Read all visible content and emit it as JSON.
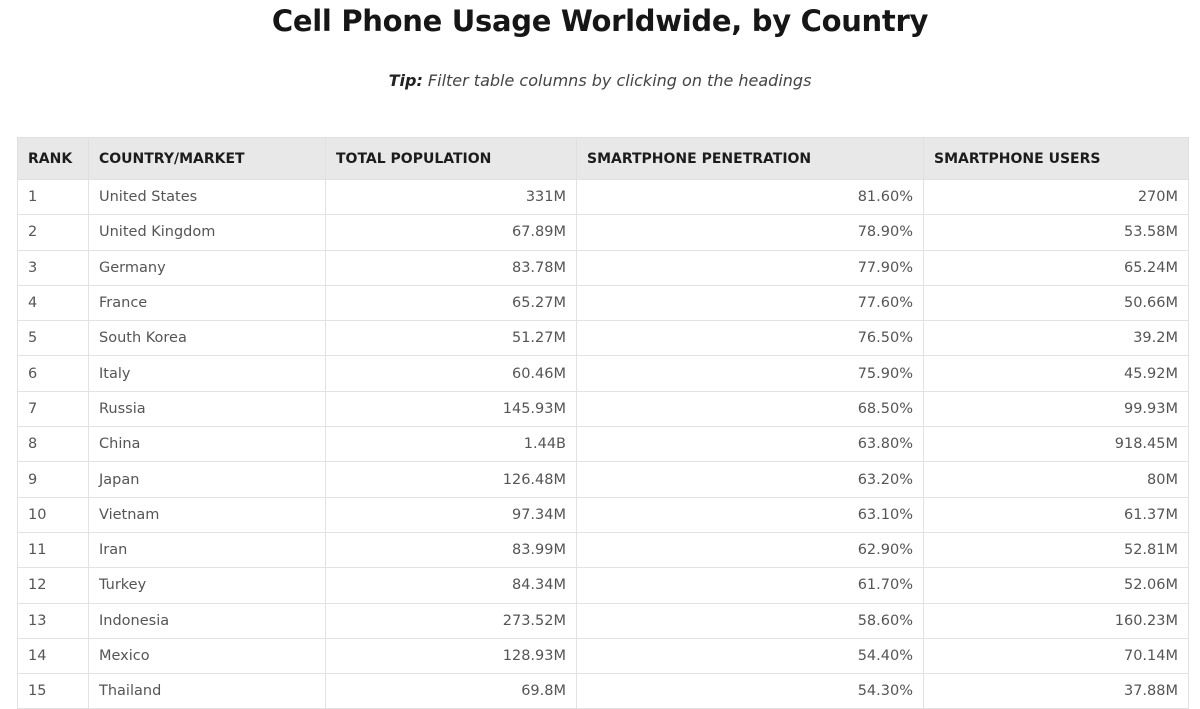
{
  "page": {
    "title": "Cell Phone Usage Worldwide, by Country",
    "tip_label": "Tip:",
    "tip_text": " Filter table columns by clicking on the headings"
  },
  "table": {
    "headers": [
      "RANK",
      "COUNTRY/MARKET",
      "TOTAL POPULATION",
      "SMARTPHONE PENETRATION",
      "SMARTPHONE USERS"
    ],
    "rows": [
      {
        "rank": "1",
        "country": "United States",
        "population": "331M",
        "penetration": "81.60%",
        "users": "270M"
      },
      {
        "rank": "2",
        "country": "United Kingdom",
        "population": "67.89M",
        "penetration": "78.90%",
        "users": "53.58M"
      },
      {
        "rank": "3",
        "country": "Germany",
        "population": "83.78M",
        "penetration": "77.90%",
        "users": "65.24M"
      },
      {
        "rank": "4",
        "country": "France",
        "population": "65.27M",
        "penetration": "77.60%",
        "users": "50.66M"
      },
      {
        "rank": "5",
        "country": "South Korea",
        "population": "51.27M",
        "penetration": "76.50%",
        "users": "39.2M"
      },
      {
        "rank": "6",
        "country": "Italy",
        "population": "60.46M",
        "penetration": "75.90%",
        "users": "45.92M"
      },
      {
        "rank": "7",
        "country": "Russia",
        "population": "145.93M",
        "penetration": "68.50%",
        "users": "99.93M"
      },
      {
        "rank": "8",
        "country": "China",
        "population": "1.44B",
        "penetration": "63.80%",
        "users": "918.45M"
      },
      {
        "rank": "9",
        "country": "Japan",
        "population": "126.48M",
        "penetration": "63.20%",
        "users": "80M"
      },
      {
        "rank": "10",
        "country": "Vietnam",
        "population": "97.34M",
        "penetration": "63.10%",
        "users": "61.37M"
      },
      {
        "rank": "11",
        "country": "Iran",
        "population": "83.99M",
        "penetration": "62.90%",
        "users": "52.81M"
      },
      {
        "rank": "12",
        "country": "Turkey",
        "population": "84.34M",
        "penetration": "61.70%",
        "users": "52.06M"
      },
      {
        "rank": "13",
        "country": "Indonesia",
        "population": "273.52M",
        "penetration": "58.60%",
        "users": "160.23M"
      },
      {
        "rank": "14",
        "country": "Mexico",
        "population": "128.93M",
        "penetration": "54.40%",
        "users": "70.14M"
      },
      {
        "rank": "15",
        "country": "Thailand",
        "population": "69.8M",
        "penetration": "54.30%",
        "users": "37.88M"
      }
    ]
  }
}
